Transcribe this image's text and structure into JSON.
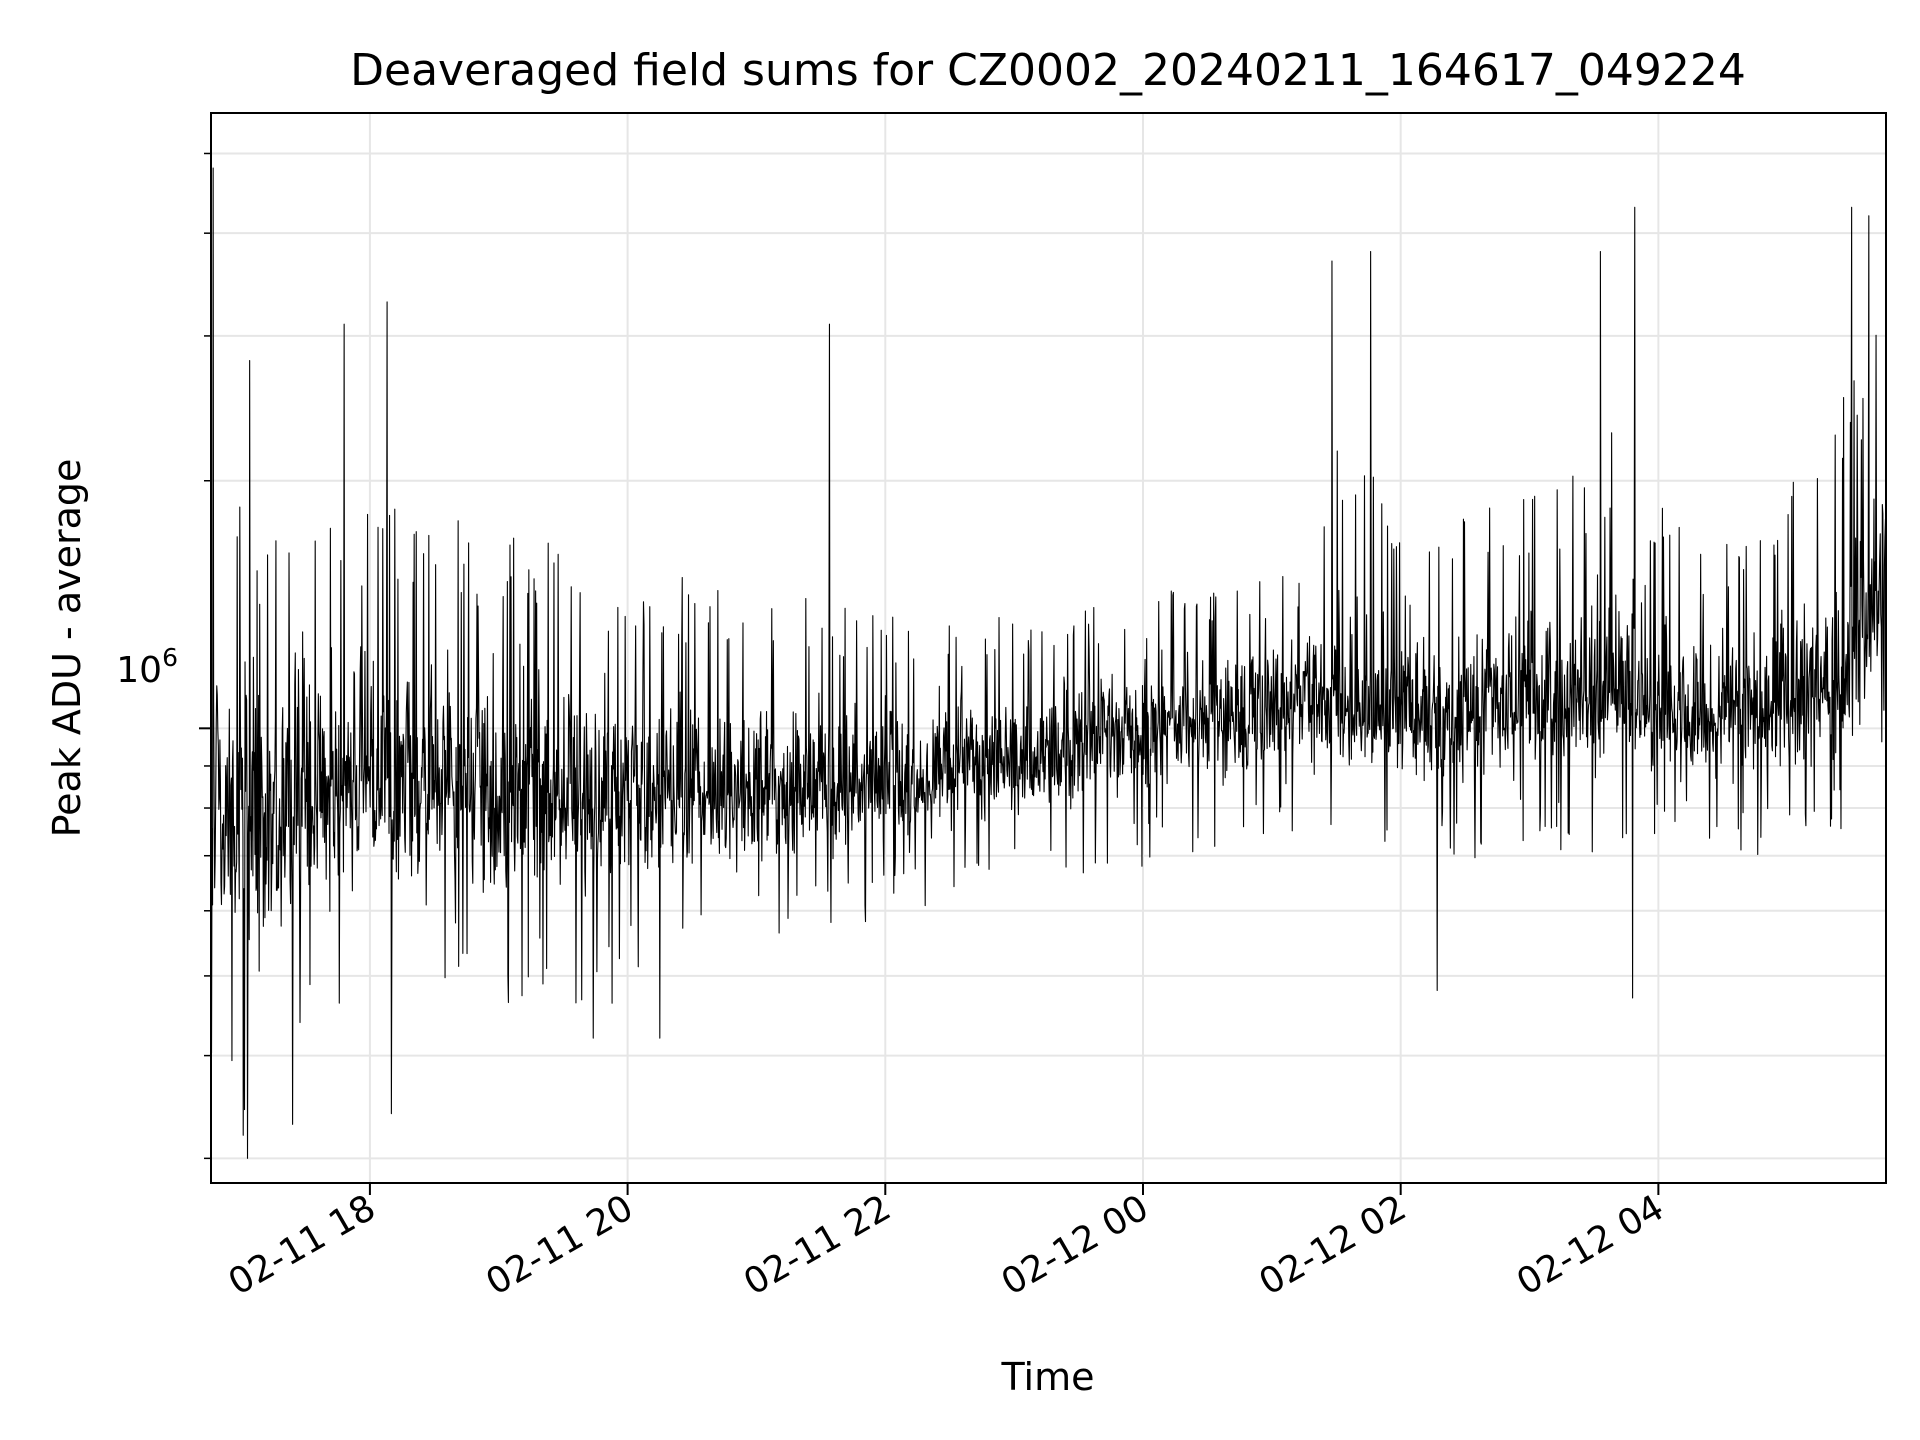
{
  "chart_data": {
    "type": "line",
    "title": "Deaveraged field sums for CZ0002_20240211_164617_049224",
    "xlabel": "Time",
    "ylabel": "Peak ADU - average",
    "x_range": [
      "2024-02-11 16:46",
      "2024-02-12 05:46"
    ],
    "y_scale": "log",
    "ylim": [
      280000,
      5600000
    ],
    "x_ticks": [
      {
        "t": "2024-02-11 18:00",
        "label": "02-11 18"
      },
      {
        "t": "2024-02-11 20:00",
        "label": "02-11 20"
      },
      {
        "t": "2024-02-11 22:00",
        "label": "02-11 22"
      },
      {
        "t": "2024-02-12 00:00",
        "label": "02-12 00"
      },
      {
        "t": "2024-02-12 02:00",
        "label": "02-12 02"
      },
      {
        "t": "2024-02-12 04:00",
        "label": "02-12 04"
      }
    ],
    "y_major_tick": {
      "value": 1000000,
      "base": "10",
      "exponent": "6"
    },
    "grid": true,
    "line_color": "#000000",
    "series": [
      {
        "x": [
          "2024-02-11 16:46",
          "2024-02-11 17:00",
          "2024-02-11 17:15",
          "2024-02-11 17:30",
          "2024-02-11 17:45",
          "2024-02-11 18:00",
          "2024-02-11 18:15",
          "2024-02-11 18:30",
          "2024-02-11 18:45",
          "2024-02-11 19:00",
          "2024-02-11 19:15",
          "2024-02-11 19:30",
          "2024-02-11 19:45",
          "2024-02-11 20:00",
          "2024-02-11 20:15",
          "2024-02-11 20:30",
          "2024-02-11 20:45",
          "2024-02-11 21:00",
          "2024-02-11 21:15",
          "2024-02-11 21:30",
          "2024-02-11 21:45",
          "2024-02-11 22:00",
          "2024-02-11 22:15",
          "2024-02-11 22:30",
          "2024-02-11 22:45",
          "2024-02-11 23:00",
          "2024-02-11 23:15",
          "2024-02-11 23:30",
          "2024-02-11 23:45",
          "2024-02-12 00:00",
          "2024-02-12 00:15",
          "2024-02-12 00:30",
          "2024-02-12 00:45",
          "2024-02-12 01:00",
          "2024-02-12 01:15",
          "2024-02-12 01:30",
          "2024-02-12 01:45",
          "2024-02-12 02:00",
          "2024-02-12 02:15",
          "2024-02-12 02:30",
          "2024-02-12 02:45",
          "2024-02-12 03:00",
          "2024-02-12 03:15",
          "2024-02-12 03:30",
          "2024-02-12 03:45",
          "2024-02-12 04:00",
          "2024-02-12 04:15",
          "2024-02-12 04:30",
          "2024-02-12 04:45",
          "2024-02-12 05:00",
          "2024-02-12 05:15",
          "2024-02-12 05:30",
          "2024-02-12 05:46"
        ],
        "y_low": [
          390000,
          330000,
          340000,
          440000,
          450000,
          440000,
          420000,
          470000,
          480000,
          460000,
          460000,
          430000,
          450000,
          470000,
          490000,
          500000,
          540000,
          560000,
          560000,
          560000,
          570000,
          580000,
          590000,
          600000,
          610000,
          630000,
          650000,
          660000,
          670000,
          680000,
          700000,
          710000,
          720000,
          720000,
          730000,
          740000,
          720000,
          710000,
          700000,
          680000,
          710000,
          720000,
          710000,
          700000,
          680000,
          720000,
          730000,
          690000,
          700000,
          720000,
          730000,
          760000,
          840000
        ],
        "y_mid": [
          780000,
          760000,
          780000,
          830000,
          850000,
          840000,
          830000,
          850000,
          860000,
          850000,
          830000,
          820000,
          830000,
          840000,
          830000,
          830000,
          820000,
          830000,
          840000,
          850000,
          860000,
          870000,
          870000,
          890000,
          900000,
          910000,
          930000,
          950000,
          970000,
          990000,
          1010000,
          1030000,
          1040000,
          1050000,
          1060000,
          1060000,
          1050000,
          1030000,
          1020000,
          1030000,
          1050000,
          1060000,
          1070000,
          1090000,
          1080000,
          1030000,
          1010000,
          1030000,
          1050000,
          1080000,
          1100000,
          1200000,
          1450000
        ],
        "y_high": [
          2700000,
          2100000,
          1800000,
          2200000,
          2000000,
          1900000,
          1850000,
          1900000,
          1800000,
          1800000,
          1750000,
          1700000,
          1650000,
          1650000,
          1550000,
          1550000,
          1500000,
          1500000,
          1450000,
          1450000,
          1420000,
          1400000,
          1380000,
          1380000,
          1370000,
          1380000,
          1380000,
          1400000,
          1420000,
          1450000,
          1480000,
          1500000,
          1530000,
          1550000,
          1600000,
          2200000,
          2100000,
          1900000,
          1850000,
          1850000,
          1900000,
          1950000,
          1950000,
          2300000,
          2400000,
          1900000,
          1750000,
          1750000,
          1800000,
          2000000,
          2200000,
          2700000,
          3200000
        ]
      }
    ],
    "spikes": [
      {
        "t": "2024-02-11 16:47",
        "y": 4800000
      },
      {
        "t": "2024-02-11 17:04",
        "y": 2800000
      },
      {
        "t": "2024-02-11 17:48",
        "y": 3100000
      },
      {
        "t": "2024-02-11 18:08",
        "y": 3300000
      },
      {
        "t": "2024-02-11 21:34",
        "y": 3100000
      },
      {
        "t": "2024-02-12 01:28",
        "y": 3700000
      },
      {
        "t": "2024-02-12 01:46",
        "y": 3800000
      },
      {
        "t": "2024-02-12 03:33",
        "y": 3800000
      },
      {
        "t": "2024-02-12 03:49",
        "y": 4300000
      },
      {
        "t": "2024-02-12 05:30",
        "y": 4300000
      },
      {
        "t": "2024-02-12 05:38",
        "y": 4200000
      }
    ],
    "dips": [
      {
        "t": "2024-02-11 17:01",
        "y": 320000
      },
      {
        "t": "2024-02-11 17:03",
        "y": 300000
      },
      {
        "t": "2024-02-11 17:24",
        "y": 330000
      },
      {
        "t": "2024-02-11 18:10",
        "y": 340000
      },
      {
        "t": "2024-02-11 19:44",
        "y": 420000
      },
      {
        "t": "2024-02-11 20:15",
        "y": 420000
      },
      {
        "t": "2024-02-12 02:17",
        "y": 480000
      },
      {
        "t": "2024-02-12 03:48",
        "y": 470000
      }
    ]
  }
}
